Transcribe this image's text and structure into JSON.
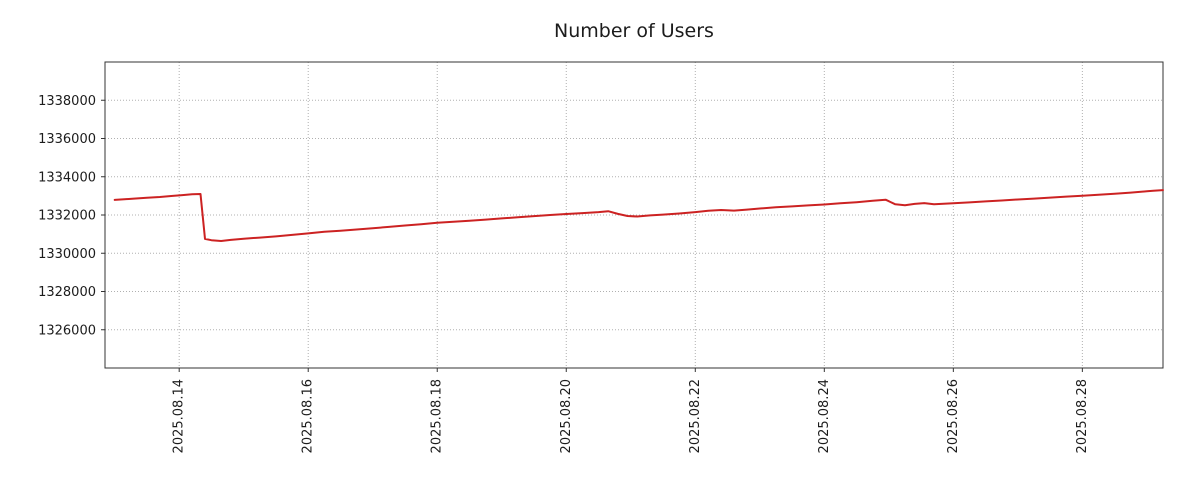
{
  "chart_data": {
    "type": "line",
    "title": "Number of Users",
    "xlabel": "",
    "ylabel": "",
    "grid": true,
    "legend": "none",
    "line_color": "#cc2222",
    "x_tick_labels": [
      "2025.08.14",
      "2025.08.16",
      "2025.08.18",
      "2025.08.20",
      "2025.08.22",
      "2025.08.24",
      "2025.08.26",
      "2025.08.28"
    ],
    "x_tick_values": [
      14,
      16,
      18,
      20,
      22,
      24,
      26,
      28
    ],
    "y_tick_values": [
      1326000,
      1328000,
      1330000,
      1332000,
      1334000,
      1336000,
      1338000
    ],
    "xlim": [
      12.85,
      29.25
    ],
    "ylim": [
      1324000,
      1340000
    ],
    "x_axis_note": "x values are fractional days in August 2025",
    "series": [
      {
        "name": "Number of Users",
        "points": [
          [
            13.0,
            1332790
          ],
          [
            13.15,
            1332820
          ],
          [
            13.3,
            1332860
          ],
          [
            13.5,
            1332900
          ],
          [
            13.7,
            1332940
          ],
          [
            13.9,
            1333000
          ],
          [
            14.05,
            1333040
          ],
          [
            14.2,
            1333080
          ],
          [
            14.33,
            1333100
          ],
          [
            14.4,
            1330750
          ],
          [
            14.5,
            1330680
          ],
          [
            14.65,
            1330640
          ],
          [
            14.8,
            1330700
          ],
          [
            15.0,
            1330760
          ],
          [
            15.25,
            1330820
          ],
          [
            15.5,
            1330880
          ],
          [
            15.75,
            1330960
          ],
          [
            16.0,
            1331040
          ],
          [
            16.25,
            1331120
          ],
          [
            16.5,
            1331180
          ],
          [
            16.75,
            1331240
          ],
          [
            17.0,
            1331310
          ],
          [
            17.25,
            1331380
          ],
          [
            17.5,
            1331450
          ],
          [
            17.75,
            1331520
          ],
          [
            18.0,
            1331600
          ],
          [
            18.25,
            1331650
          ],
          [
            18.5,
            1331700
          ],
          [
            18.75,
            1331760
          ],
          [
            19.0,
            1331820
          ],
          [
            19.25,
            1331880
          ],
          [
            19.5,
            1331940
          ],
          [
            19.75,
            1332000
          ],
          [
            20.0,
            1332050
          ],
          [
            20.25,
            1332100
          ],
          [
            20.5,
            1332150
          ],
          [
            20.65,
            1332200
          ],
          [
            20.8,
            1332060
          ],
          [
            20.95,
            1331950
          ],
          [
            21.1,
            1331920
          ],
          [
            21.3,
            1331980
          ],
          [
            21.5,
            1332020
          ],
          [
            21.75,
            1332080
          ],
          [
            22.0,
            1332150
          ],
          [
            22.2,
            1332220
          ],
          [
            22.4,
            1332260
          ],
          [
            22.6,
            1332230
          ],
          [
            22.8,
            1332280
          ],
          [
            23.0,
            1332340
          ],
          [
            23.25,
            1332400
          ],
          [
            23.5,
            1332450
          ],
          [
            23.75,
            1332500
          ],
          [
            24.0,
            1332550
          ],
          [
            24.25,
            1332610
          ],
          [
            24.5,
            1332670
          ],
          [
            24.75,
            1332740
          ],
          [
            24.95,
            1332800
          ],
          [
            25.1,
            1332560
          ],
          [
            25.25,
            1332510
          ],
          [
            25.4,
            1332580
          ],
          [
            25.55,
            1332620
          ],
          [
            25.7,
            1332560
          ],
          [
            25.85,
            1332590
          ],
          [
            26.0,
            1332610
          ],
          [
            26.25,
            1332660
          ],
          [
            26.5,
            1332710
          ],
          [
            26.75,
            1332760
          ],
          [
            27.0,
            1332810
          ],
          [
            27.25,
            1332860
          ],
          [
            27.5,
            1332910
          ],
          [
            27.75,
            1332960
          ],
          [
            28.0,
            1333010
          ],
          [
            28.25,
            1333060
          ],
          [
            28.5,
            1333110
          ],
          [
            28.75,
            1333170
          ],
          [
            29.0,
            1333240
          ],
          [
            29.1,
            1333270
          ],
          [
            29.25,
            1333300
          ]
        ]
      }
    ]
  }
}
